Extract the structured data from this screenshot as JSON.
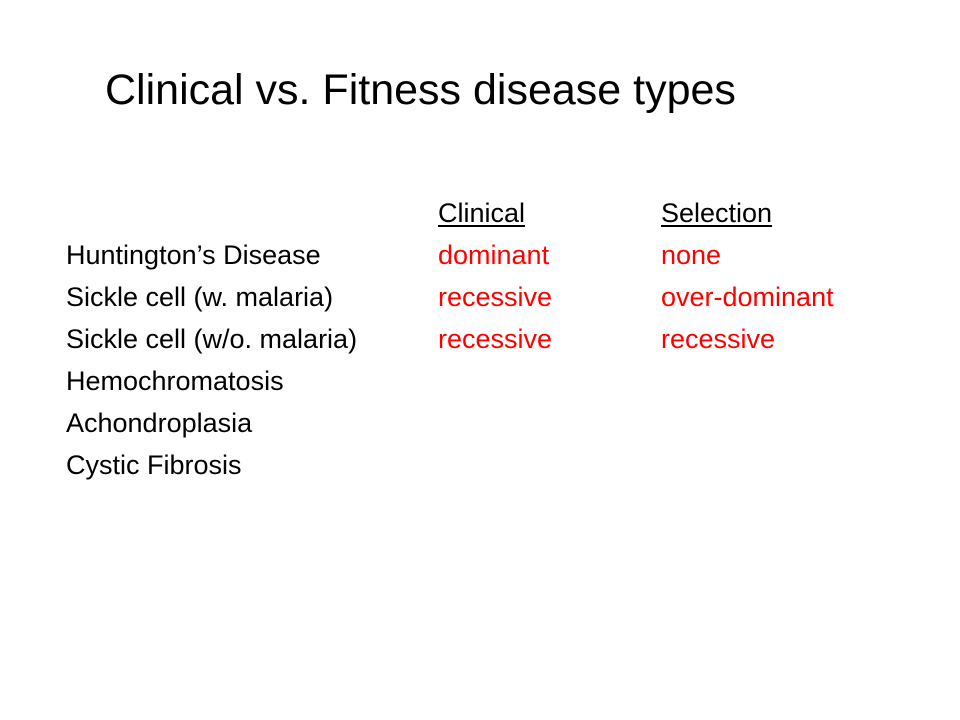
{
  "title": "Clinical vs. Fitness disease types",
  "colors": {
    "text": "#000000",
    "accent": "#ff0000",
    "background": "#ffffff"
  },
  "table": {
    "headers": {
      "clinical": "Clinical",
      "selection": "Selection"
    },
    "rows": [
      {
        "disease": "Huntington’s Disease",
        "clinical": "dominant",
        "selection": "none"
      },
      {
        "disease": "Sickle cell (w. malaria)",
        "clinical": "recessive",
        "selection": "over-dominant"
      },
      {
        "disease": "Sickle cell (w/o. malaria)",
        "clinical": "recessive",
        "selection": "recessive"
      },
      {
        "disease": "Hemochromatosis",
        "clinical": "",
        "selection": ""
      },
      {
        "disease": "Achondroplasia",
        "clinical": "",
        "selection": ""
      },
      {
        "disease": "Cystic Fibrosis",
        "clinical": "",
        "selection": ""
      }
    ]
  }
}
